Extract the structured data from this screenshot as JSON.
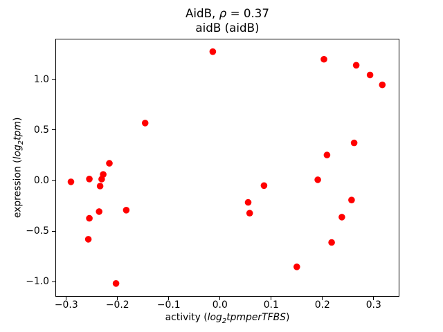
{
  "figure": {
    "title": {
      "line1_prefix": "AidB, ",
      "line1_rho": "ρ",
      "line1_rest": " = 0.37",
      "line2": "aidB (aidB)"
    },
    "xlabel": {
      "prefix": "activity (",
      "log": "log",
      "sub": "2",
      "rest": "tpmperTFBS",
      "suffix": ")"
    },
    "ylabel": {
      "prefix": "expression (",
      "log": "log",
      "sub": "2",
      "rest": "tpm",
      "suffix": ")"
    }
  },
  "chart_data": {
    "type": "scatter",
    "title": "AidB, ρ = 0.37",
    "subtitle": "aidB (aidB)",
    "xlabel": "activity (log₂tpmperTFBS)",
    "ylabel": "expression (log₂tpm)",
    "correlation_rho": 0.37,
    "marker_color": "#ff0000",
    "marker_radius_px": 4.8,
    "grid": false,
    "legend": false,
    "xlim": [
      -0.32,
      0.349
    ],
    "ylim": [
      -1.141,
      1.393
    ],
    "x_ticks": [
      -0.3,
      -0.2,
      -0.1,
      0.0,
      0.1,
      0.2,
      0.3
    ],
    "x_tick_labels": [
      "−0.3",
      "−0.2",
      "−0.1",
      "0.0",
      "0.1",
      "0.2",
      "0.3"
    ],
    "y_ticks": [
      -1.0,
      -0.5,
      0.0,
      0.5,
      1.0
    ],
    "y_tick_labels": [
      "−1.0",
      "−0.5",
      "0.0",
      "0.5",
      "1.0"
    ],
    "points": [
      [
        -0.291,
        -0.013
      ],
      [
        -0.255,
        0.015
      ],
      [
        -0.228,
        0.06
      ],
      [
        -0.231,
        0.013
      ],
      [
        -0.234,
        -0.055
      ],
      [
        -0.216,
        0.17
      ],
      [
        -0.183,
        -0.293
      ],
      [
        -0.236,
        -0.307
      ],
      [
        -0.255,
        -0.373
      ],
      [
        -0.257,
        -0.58
      ],
      [
        -0.203,
        -1.017
      ],
      [
        -0.146,
        0.567
      ],
      [
        -0.014,
        1.272
      ],
      [
        0.203,
        1.197
      ],
      [
        0.266,
        1.138
      ],
      [
        0.293,
        1.042
      ],
      [
        0.317,
        0.944
      ],
      [
        0.262,
        0.371
      ],
      [
        0.209,
        0.252
      ],
      [
        0.191,
        0.007
      ],
      [
        0.086,
        -0.05
      ],
      [
        0.055,
        -0.216
      ],
      [
        0.058,
        -0.323
      ],
      [
        0.257,
        -0.193
      ],
      [
        0.238,
        -0.362
      ],
      [
        0.218,
        -0.612
      ],
      [
        0.15,
        -0.853
      ]
    ]
  }
}
